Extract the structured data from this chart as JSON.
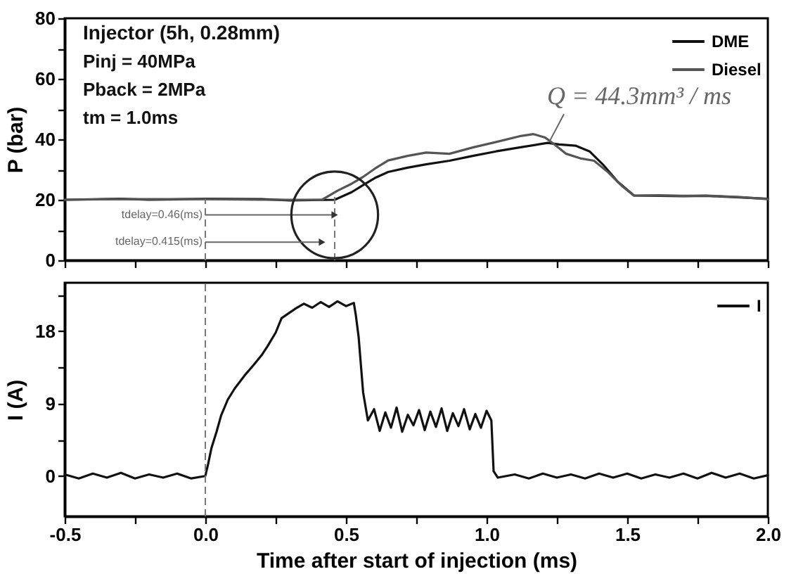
{
  "chart_data": [
    {
      "type": "line",
      "ylabel": "P (bar)",
      "annotations": [
        "Injector (5h, 0.28mm)",
        "Pinj = 40MPa",
        "Pback = 2MPa",
        "tm = 1.0ms",
        {
          "text": "tdelay=0.46(ms)",
          "x": 0.46,
          "y": 15
        },
        {
          "text": "tdelay=0.415(ms)",
          "x": 0.415,
          "y": 6
        },
        {
          "text": "Q = 44.3mm³ / ms",
          "x": 1.225,
          "y": 39.5
        }
      ],
      "series": [
        {
          "name": "DME",
          "color": "#111111",
          "x": [
            -0.5,
            -0.3,
            -0.2,
            0,
            0.2,
            0.3,
            0.46,
            0.52,
            0.56,
            0.603,
            0.65,
            0.719,
            0.785,
            0.868,
            0.951,
            1.034,
            1.117,
            1.217,
            1.258,
            1.316,
            1.366,
            1.416,
            1.466,
            1.524,
            1.615,
            1.7,
            1.781,
            1.9,
            2.0
          ],
          "values": [
            20,
            20.3,
            20,
            20.3,
            20.2,
            19.8,
            20,
            22.5,
            24.8,
            27.2,
            29.2,
            30.6,
            31.7,
            32.9,
            34.5,
            36.0,
            37.3,
            38.8,
            38.3,
            37.9,
            36.0,
            31.4,
            26.0,
            21.4,
            21.3,
            21.2,
            21.3,
            20.8,
            20.3
          ]
        },
        {
          "name": "Diesel",
          "color": "#555555",
          "x": [
            -0.5,
            -0.3,
            0,
            0.2,
            0.415,
            0.47,
            0.52,
            0.56,
            0.603,
            0.65,
            0.719,
            0.785,
            0.868,
            0.951,
            1.034,
            1.117,
            1.167,
            1.208,
            1.241,
            1.283,
            1.333,
            1.382,
            1.432,
            1.482,
            1.524,
            1.615,
            1.7,
            1.781,
            1.9,
            2.0
          ],
          "values": [
            20,
            20.2,
            20.2,
            20,
            20,
            23.0,
            25.3,
            27.5,
            30.3,
            33.0,
            34.5,
            35.6,
            35.2,
            37.3,
            39.1,
            41.0,
            41.7,
            40.6,
            38.3,
            35.2,
            33.7,
            32.9,
            29.1,
            24.5,
            21.4,
            21.5,
            21.3,
            21.4,
            20.9,
            20.2
          ]
        }
      ],
      "xlim": [
        -0.5,
        2.0
      ],
      "xticks": [
        -0.5,
        {
          "value": -0.25,
          "label": null
        },
        0,
        {
          "value": 0.25,
          "label": null
        },
        0.5,
        {
          "value": 0.75,
          "label": null
        },
        1,
        {
          "value": 1.25,
          "label": null
        },
        1.5,
        {
          "value": 1.75,
          "label": null
        },
        2
      ],
      "ylim": [
        0,
        80
      ],
      "yticks": [
        0,
        {
          "value": 10,
          "label": null
        },
        20,
        {
          "value": 30,
          "label": null
        },
        40,
        {
          "value": 50,
          "label": null
        },
        60,
        {
          "value": 70,
          "label": null
        },
        80
      ],
      "ref_lines": [
        {
          "axis": "x",
          "value": 0,
          "color": "#777777",
          "line_style": "dashed"
        },
        {
          "axis": "x",
          "value": 0.46,
          "color": "#777777",
          "line_style": "dashed"
        }
      ],
      "tick_labels": "y",
      "legend": "top right"
    },
    {
      "type": "line",
      "xlabel": "Time after start of injection (ms)",
      "ylabel": "I (A)",
      "series": [
        {
          "name": "I",
          "color": "#111111",
          "x": [
            -0.5,
            -0.45,
            -0.4,
            -0.35,
            -0.3,
            -0.25,
            -0.2,
            -0.15,
            -0.1,
            -0.05,
            0.0,
            0.01,
            0.022,
            0.04,
            0.056,
            0.08,
            0.105,
            0.14,
            0.172,
            0.2,
            0.221,
            0.25,
            0.271,
            0.3,
            0.321,
            0.35,
            0.38,
            0.41,
            0.44,
            0.47,
            0.5,
            0.528,
            0.535,
            0.545,
            0.561,
            0.578,
            0.6,
            0.62,
            0.64,
            0.66,
            0.68,
            0.7,
            0.72,
            0.74,
            0.76,
            0.78,
            0.8,
            0.82,
            0.84,
            0.86,
            0.88,
            0.9,
            0.92,
            0.94,
            0.96,
            0.98,
            1.0,
            1.017,
            1.025,
            1.04,
            1.1,
            1.15,
            1.2,
            1.25,
            1.3,
            1.35,
            1.4,
            1.45,
            1.5,
            1.55,
            1.6,
            1.65,
            1.7,
            1.75,
            1.8,
            1.85,
            1.9,
            1.95,
            2.0
          ],
          "values": [
            0.2,
            -0.3,
            0.3,
            -0.2,
            0.4,
            -0.3,
            0.2,
            -0.2,
            0.3,
            -0.3,
            0.0,
            1.5,
            3.5,
            5.5,
            7.5,
            9.5,
            10.9,
            12.5,
            13.8,
            15.0,
            16.1,
            17.8,
            19.6,
            20.3,
            20.8,
            21.4,
            20.9,
            21.6,
            21.0,
            21.7,
            21.1,
            21.5,
            20.0,
            17.3,
            10.4,
            6.9,
            8.3,
            5.6,
            7.9,
            6.0,
            8.5,
            5.5,
            7.6,
            6.3,
            8.2,
            5.7,
            8.0,
            6.1,
            8.4,
            5.6,
            7.8,
            6.2,
            8.3,
            5.8,
            7.7,
            6.0,
            8.1,
            6.9,
            0.6,
            -0.2,
            0.2,
            -0.3,
            0.3,
            -0.2,
            0.2,
            -0.3,
            0.3,
            -0.2,
            0.3,
            -0.3,
            0.2,
            -0.2,
            0.3,
            -0.3,
            0.4,
            -0.2,
            0.3,
            -0.3,
            0.1
          ]
        }
      ],
      "xlim": [
        -0.5,
        2.0
      ],
      "xticks": [
        -0.5,
        {
          "value": -0.25,
          "label": null
        },
        {
          "value": 0,
          "label": "0.0"
        },
        {
          "value": 0.25,
          "label": null
        },
        0.5,
        {
          "value": 0.75,
          "label": null
        },
        {
          "value": 1,
          "label": "1.0"
        },
        {
          "value": 1.25,
          "label": null
        },
        1.5,
        {
          "value": 1.75,
          "label": null
        },
        {
          "value": 2,
          "label": "2.0"
        }
      ],
      "ylim": [
        -5,
        24
      ],
      "yticks": [
        0,
        {
          "value": 4.5,
          "label": null
        },
        9,
        {
          "value": 13.5,
          "label": null
        },
        18,
        {
          "value": 22.5,
          "label": null
        }
      ],
      "ref_lines": [
        {
          "axis": "x",
          "value": 0,
          "color": "#777777",
          "line_style": "dashed"
        }
      ],
      "legend": "top right"
    }
  ]
}
